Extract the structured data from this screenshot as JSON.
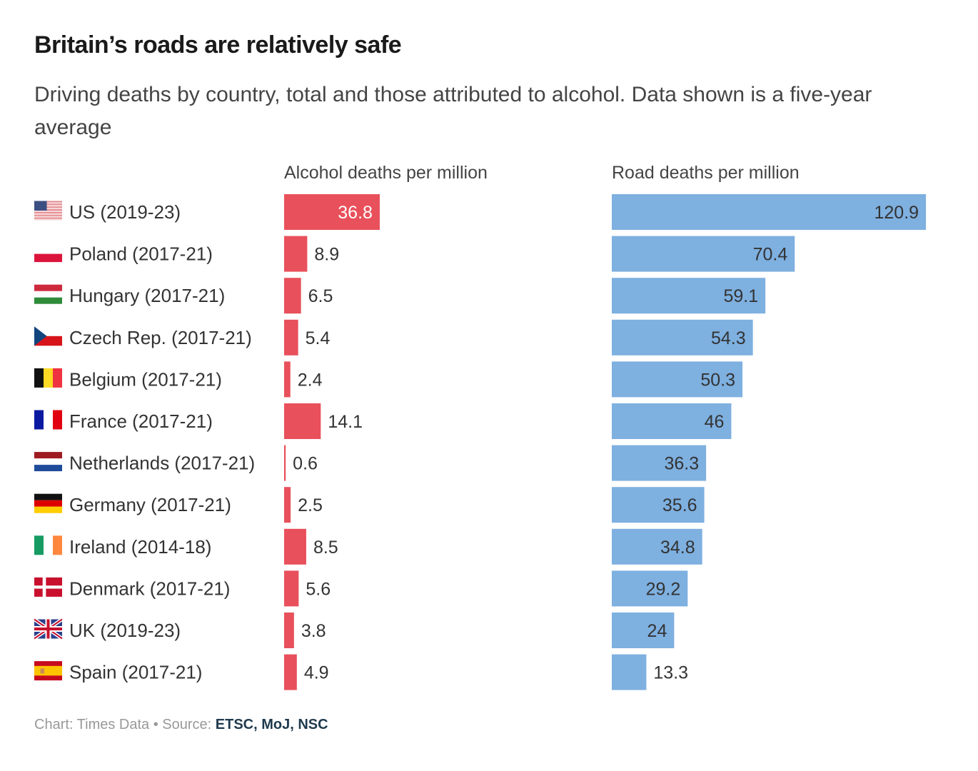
{
  "header": {
    "title": "Britain’s roads are relatively safe",
    "subtitle": "Driving deaths by country, total and those attributed to alcohol. Data shown is a five-year average"
  },
  "footer": {
    "prefix": "Chart: Times Data • Source: ",
    "sources": "ETSC, MoJ, NSC"
  },
  "colors": {
    "alcohol": "#e8505b",
    "road": "#7eb0e0",
    "text": "#333333"
  },
  "chart_data": {
    "type": "bar",
    "orientation": "horizontal",
    "title": "Britain’s roads are relatively safe",
    "subtitle": "Driving deaths by country, total and those attributed to alcohol. Data shown is a five-year average",
    "categories": [
      "US (2019-23)",
      "Poland (2017-21)",
      "Hungary (2017-21)",
      "Czech Rep. (2017-21)",
      "Belgium (2017-21)",
      "France (2017-21)",
      "Netherlands (2017-21)",
      "Germany (2017-21)",
      "Ireland (2014-18)",
      "Denmark (2017-21)",
      "UK (2019-23)",
      "Spain (2017-21)"
    ],
    "flags": [
      "us",
      "pl",
      "hu",
      "cz",
      "be",
      "fr",
      "nl",
      "de",
      "ie",
      "dk",
      "gb",
      "es"
    ],
    "series": [
      {
        "name": "Alcohol deaths per million",
        "color": "#e8505b",
        "values": [
          36.8,
          8.9,
          6.5,
          5.4,
          2.4,
          14.1,
          0.6,
          2.5,
          8.5,
          5.6,
          3.8,
          4.9
        ]
      },
      {
        "name": "Road deaths per million",
        "color": "#7eb0e0",
        "values": [
          120.9,
          70.4,
          59.1,
          54.3,
          50.3,
          46,
          36.3,
          35.6,
          34.8,
          29.2,
          24,
          13.3
        ]
      }
    ],
    "xlim": [
      0,
      121
    ],
    "grid": false,
    "legend": "none",
    "source": "Chart: Times Data • Source: ETSC, MoJ, NSC"
  }
}
